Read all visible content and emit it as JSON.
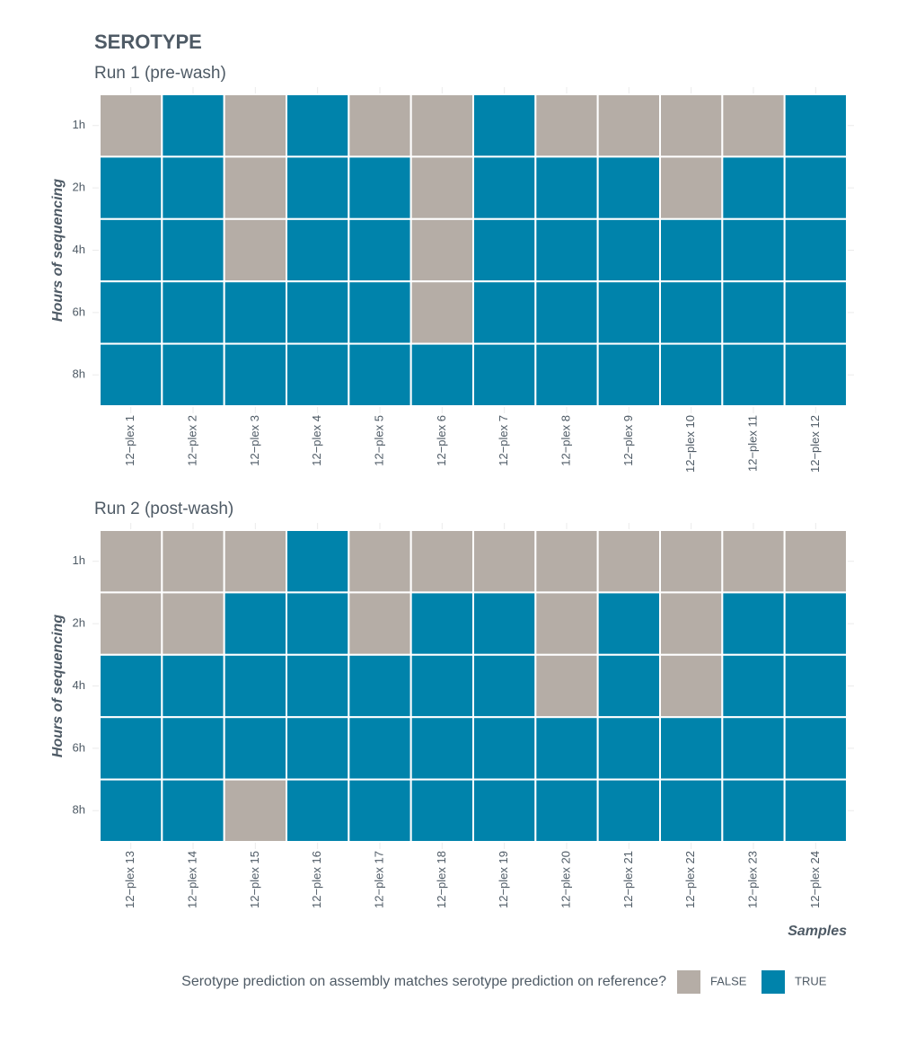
{
  "chart_data": {
    "type": "heatmap",
    "title": "SEROTYPE",
    "y_label": "Hours of sequencing",
    "x_label": "Samples",
    "legend": {
      "title": "Serotype prediction on assembly matches serotype prediction on reference?",
      "entries": [
        {
          "label": "FALSE",
          "value": false,
          "color": "#b5ada6"
        },
        {
          "label": "TRUE",
          "value": true,
          "color": "#0083ab"
        }
      ]
    },
    "panels": [
      {
        "subtitle": "Run 1 (pre-wash)",
        "y_categories": [
          "1h",
          "2h",
          "4h",
          "6h",
          "8h"
        ],
        "x_categories": [
          "12−plex 1",
          "12−plex 2",
          "12−plex 3",
          "12−plex 4",
          "12−plex 5",
          "12−plex 6",
          "12−plex 7",
          "12−plex 8",
          "12−plex 9",
          "12−plex 10",
          "12−plex 11",
          "12−plex 12"
        ],
        "values": [
          [
            false,
            true,
            false,
            true,
            false,
            false,
            true,
            false,
            false,
            false,
            false,
            true
          ],
          [
            true,
            true,
            false,
            true,
            true,
            false,
            true,
            true,
            true,
            false,
            true,
            true
          ],
          [
            true,
            true,
            false,
            true,
            true,
            false,
            true,
            true,
            true,
            true,
            true,
            true
          ],
          [
            true,
            true,
            true,
            true,
            true,
            false,
            true,
            true,
            true,
            true,
            true,
            true
          ],
          [
            true,
            true,
            true,
            true,
            true,
            true,
            true,
            true,
            true,
            true,
            true,
            true
          ]
        ]
      },
      {
        "subtitle": "Run 2 (post-wash)",
        "y_categories": [
          "1h",
          "2h",
          "4h",
          "6h",
          "8h"
        ],
        "x_categories": [
          "12−plex 13",
          "12−plex 14",
          "12−plex 15",
          "12−plex 16",
          "12−plex 17",
          "12−plex 18",
          "12−plex 19",
          "12−plex 20",
          "12−plex 21",
          "12−plex 22",
          "12−plex 23",
          "12−plex 24"
        ],
        "values": [
          [
            false,
            false,
            false,
            true,
            false,
            false,
            false,
            false,
            false,
            false,
            false,
            false
          ],
          [
            false,
            false,
            true,
            true,
            false,
            true,
            true,
            false,
            true,
            false,
            true,
            true
          ],
          [
            true,
            true,
            true,
            true,
            true,
            true,
            true,
            false,
            true,
            false,
            true,
            true
          ],
          [
            true,
            true,
            true,
            true,
            true,
            true,
            true,
            true,
            true,
            true,
            true,
            true
          ],
          [
            true,
            true,
            false,
            true,
            true,
            true,
            true,
            true,
            true,
            true,
            true,
            true
          ]
        ]
      }
    ]
  }
}
